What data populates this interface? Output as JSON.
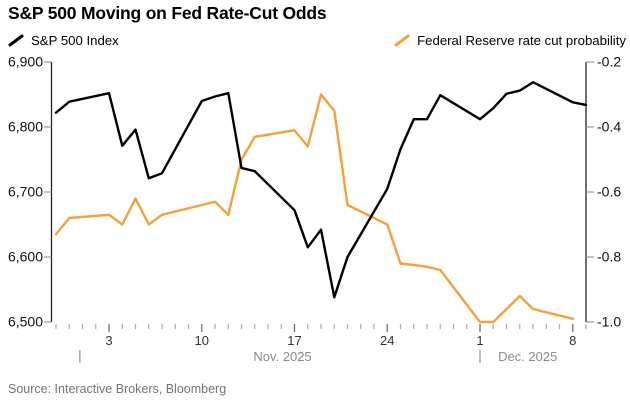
{
  "title": "S&P 500 Moving on Fed Rate-Cut Odds",
  "legend": {
    "items": [
      {
        "label": "S&P 500 Index",
        "color": "#000000"
      },
      {
        "label": "Federal Reserve rate cut probability",
        "color": "#f5a039"
      }
    ]
  },
  "source": "Source: Interactive Brokers, Bloomberg",
  "chart_data": {
    "type": "line",
    "title": "S&P 500 Moving on Fed Rate-Cut Odds",
    "grid": false,
    "legend_position": "top",
    "left_axis": {
      "range": [
        6500,
        6900
      ],
      "ticks": [
        {
          "label": "6,900",
          "value": 6900
        },
        {
          "label": "6,800",
          "value": 6800
        },
        {
          "label": "6,700",
          "value": 6700
        },
        {
          "label": "6,600",
          "value": 6600
        },
        {
          "label": "6,500",
          "value": 6500
        }
      ]
    },
    "right_axis": {
      "range": [
        -1.0,
        -0.2
      ],
      "ticks": [
        {
          "label": "-0.2",
          "value": -0.2
        },
        {
          "label": "-0.4",
          "value": -0.4
        },
        {
          "label": "-0.6",
          "value": -0.6
        },
        {
          "label": "-0.8",
          "value": -0.8
        },
        {
          "label": "-1.0",
          "value": -1.0
        }
      ]
    },
    "x_axis": {
      "tick_labels": [
        {
          "label": "3",
          "day": 0
        },
        {
          "label": "10",
          "day": 7
        },
        {
          "label": "17",
          "day": 14
        },
        {
          "label": "24",
          "day": 21
        },
        {
          "label": "1",
          "day": 28
        },
        {
          "label": "8",
          "day": 35
        }
      ],
      "minor_tick_days": {
        "from": -4,
        "to": 36
      },
      "months": [
        {
          "label": "Nov. 2025",
          "sep_day": -2.2,
          "label_day": 13.1
        },
        {
          "label": "Dec. 2025",
          "sep_day": 28,
          "label_day": 31.6
        }
      ]
    },
    "series": [
      {
        "name": "S&P 500 Index",
        "color": "#000000",
        "axis": "left",
        "dates": [
          "Oct 30",
          "Oct 31",
          "Nov 3",
          "Nov 4",
          "Nov 5",
          "Nov 6",
          "Nov 7",
          "Nov 10",
          "Nov 11",
          "Nov 12",
          "Nov 13",
          "Nov 14",
          "Nov 17",
          "Nov 18",
          "Nov 19",
          "Nov 20",
          "Nov 21",
          "Nov 24",
          "Nov 25",
          "Nov 26",
          "Nov 27",
          "Nov 28",
          "Dec 1",
          "Dec 2",
          "Dec 3",
          "Dec 4",
          "Dec 5",
          "Dec 8",
          "Dec 9"
        ],
        "days": [
          -4,
          -3,
          0,
          1,
          2,
          3,
          4,
          7,
          8,
          9,
          10,
          11,
          14,
          15,
          16,
          17,
          18,
          21,
          22,
          23,
          24,
          25,
          28,
          29,
          30,
          31,
          32,
          35,
          36
        ],
        "values": [
          6822,
          6839,
          6852,
          6771,
          6796,
          6721,
          6729,
          6840,
          6847,
          6852,
          6737,
          6732,
          6672,
          6615,
          6642,
          6538,
          6600,
          6705,
          6766,
          6812,
          6812,
          6849,
          6812,
          6829,
          6851,
          6856,
          6869,
          6838,
          6834
        ]
      },
      {
        "name": "Federal Reserve rate cut probability",
        "color": "#f5a039",
        "axis": "right",
        "dates": [
          "Oct 30",
          "Oct 31",
          "Nov 3",
          "Nov 4",
          "Nov 5",
          "Nov 6",
          "Nov 7",
          "Nov 10",
          "Nov 11",
          "Nov 12",
          "Nov 13",
          "Nov 14",
          "Nov 17",
          "Nov 18",
          "Nov 19",
          "Nov 20",
          "Nov 21",
          "Nov 24",
          "Nov 25",
          "Nov 26",
          "Nov 27",
          "Nov 28",
          "Dec 1",
          "Dec 2",
          "Dec 3",
          "Dec 4",
          "Dec 5",
          "Dec 8"
        ],
        "days": [
          -4,
          -3,
          0,
          1,
          2,
          3,
          4,
          7,
          8,
          9,
          10,
          11,
          14,
          15,
          16,
          17,
          18,
          21,
          22,
          23,
          24,
          25,
          28,
          29,
          30,
          31,
          32,
          35
        ],
        "values": [
          -0.73,
          -0.68,
          -0.67,
          -0.7,
          -0.62,
          -0.7,
          -0.67,
          -0.64,
          -0.63,
          -0.67,
          -0.5,
          -0.43,
          -0.41,
          -0.46,
          -0.3,
          -0.35,
          -0.64,
          -0.7,
          -0.82,
          -0.825,
          -0.83,
          -0.84,
          -1.0,
          -1.0,
          -0.96,
          -0.92,
          -0.96,
          -0.99
        ]
      }
    ]
  }
}
